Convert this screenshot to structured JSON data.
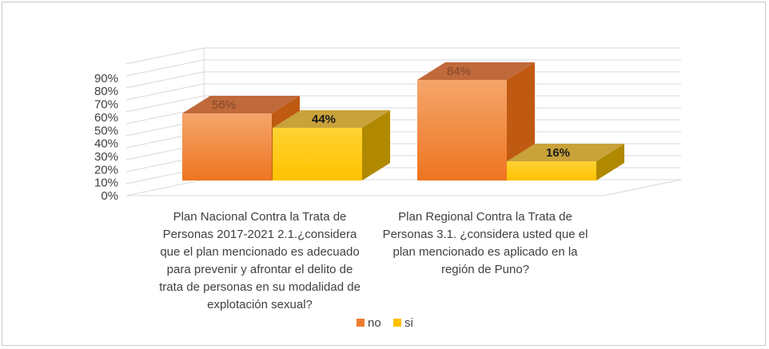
{
  "chart_data": {
    "type": "bar",
    "categories": [
      "Plan Nacional Contra la Trata de Personas 2017-2021  2.1.¿considera que el plan mencionado es adecuado para prevenir y afrontar el delito de trata de personas en su modalidad de explotación sexual?",
      "Plan Regional Contra la Trata de Personas 3.1. ¿considera usted que el plan mencionado es aplicado en la región de Puno?"
    ],
    "category_lines": [
      [
        "Plan Nacional Contra la Trata de",
        "Personas 2017-2021  2.1.¿considera",
        "que el plan mencionado es adecuado",
        "para prevenir y afrontar el delito de",
        "trata de personas en su modalidad de",
        "explotación sexual?"
      ],
      [
        "Plan Regional Contra la Trata de",
        "Personas 3.1. ¿considera usted que el",
        "plan mencionado es aplicado en la",
        "región de Puno?"
      ]
    ],
    "series": [
      {
        "name": "no",
        "values": [
          56,
          84
        ],
        "labels": [
          "56%",
          "84%"
        ],
        "color": "#ED7D31"
      },
      {
        "name": "si",
        "values": [
          44,
          16
        ],
        "labels": [
          "44%",
          "16%"
        ],
        "color": "#FFC000"
      }
    ],
    "yaxis": {
      "ticks": [
        0,
        10,
        20,
        30,
        40,
        50,
        60,
        70,
        80,
        90
      ],
      "tick_labels": [
        "0%",
        "10%",
        "20%",
        "30%",
        "40%",
        "50%",
        "60%",
        "70%",
        "80%",
        "90%"
      ],
      "range": [
        0,
        90
      ]
    },
    "grid": true,
    "legend_position": "bottom",
    "title": "",
    "xlabel": "",
    "ylabel": ""
  }
}
